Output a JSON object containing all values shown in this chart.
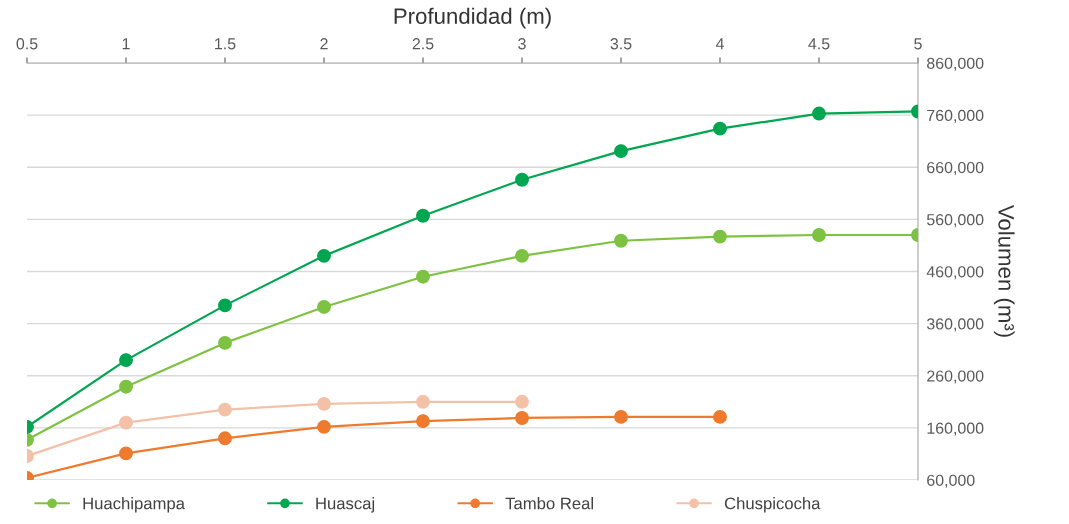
{
  "chart_data": {
    "type": "line",
    "xlabel": "Profundidad (m)",
    "ylabel": "Volumen (m³)",
    "x": [
      0.5,
      1,
      1.5,
      2,
      2.5,
      3,
      3.5,
      4,
      4.5,
      5
    ],
    "series": [
      {
        "name": "Huachipampa",
        "color": "#7dc242",
        "values": [
          137000,
          239000,
          323000,
          392000,
          450000,
          490000,
          519000,
          527000,
          530000,
          530000
        ]
      },
      {
        "name": "Huascaj",
        "color": "#00a650",
        "values": [
          162000,
          290000,
          395000,
          490000,
          567000,
          636000,
          691000,
          734000,
          763000,
          767000
        ]
      },
      {
        "name": "Tambo Real",
        "color": "#ee7a2e",
        "values": [
          64000,
          111000,
          140000,
          162000,
          173000,
          179000,
          181000,
          181000,
          null,
          null
        ]
      },
      {
        "name": "Chuspicocha",
        "color": "#f3c1a8",
        "values": [
          106000,
          170000,
          195000,
          206000,
          210000,
          210000,
          null,
          null,
          null,
          null
        ]
      }
    ],
    "xlim": [
      0.5,
      5
    ],
    "xticks": [
      0.5,
      1,
      1.5,
      2,
      2.5,
      3,
      3.5,
      4,
      4.5,
      5
    ],
    "ylim": [
      60000,
      860000
    ],
    "yticks": [
      {
        "value": 60000,
        "label": "60,000"
      },
      {
        "value": 160000,
        "label": "160,000"
      },
      {
        "value": 260000,
        "label": "260,000"
      },
      {
        "value": 360000,
        "label": "360,000"
      },
      {
        "value": 460000,
        "label": "460,000"
      },
      {
        "value": 560000,
        "label": "560,000"
      },
      {
        "value": 660000,
        "label": "660,000"
      },
      {
        "value": 760000,
        "label": "760,000"
      },
      {
        "value": 860000,
        "label": "860,000"
      }
    ],
    "grid": "y",
    "legend": "bottom",
    "marker": "circle",
    "line_style": "solid"
  }
}
